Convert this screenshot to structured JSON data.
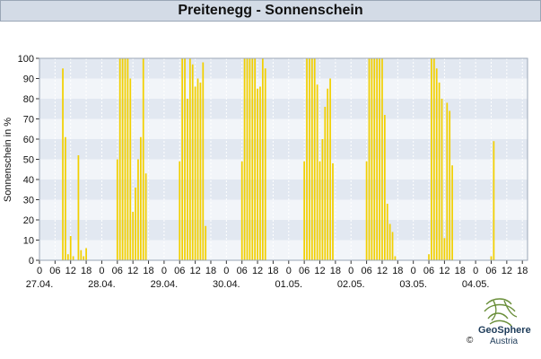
{
  "title": "Preitenegg - Sonnenschein",
  "footer": {
    "brand": "GeoSphere",
    "brand_sub": "Austria",
    "copyright": "©"
  },
  "colors": {
    "bar": "#f2d000",
    "band_a": "#f2f5f9",
    "band_b": "#e2e8f1",
    "grid": "#9aa6b6"
  },
  "chart_data": {
    "type": "bar",
    "title": "Preitenegg - Sonnenschein",
    "xlabel": "",
    "ylabel": "Sonnenschein in %",
    "ylim": [
      0,
      100
    ],
    "yticks": [
      0,
      10,
      20,
      30,
      40,
      50,
      60,
      70,
      80,
      90,
      100
    ],
    "grid": true,
    "x_unit": "hours since 27.04. 00:00 (one bar per hour)",
    "xlim_hours": [
      0,
      188
    ],
    "hour_ticks": [
      "0",
      "06",
      "12",
      "18"
    ],
    "day_labels": [
      "27.04.",
      "28.04.",
      "29.04.",
      "30.04.",
      "01.05.",
      "02.05.",
      "03.05.",
      "04.05."
    ],
    "series": [
      {
        "values": [
          [
            9,
            95
          ],
          [
            10,
            61
          ],
          [
            11,
            3
          ],
          [
            12,
            12
          ],
          [
            13,
            2
          ],
          [
            15,
            52
          ],
          [
            16,
            5
          ],
          [
            17,
            2
          ],
          [
            18,
            6
          ],
          [
            30,
            50
          ],
          [
            31,
            100
          ],
          [
            32,
            100
          ],
          [
            33,
            100
          ],
          [
            34,
            100
          ],
          [
            35,
            90
          ],
          [
            36,
            24
          ],
          [
            37,
            36
          ],
          [
            38,
            50
          ],
          [
            39,
            61
          ],
          [
            40,
            100
          ],
          [
            41,
            43
          ],
          [
            54,
            49
          ],
          [
            55,
            100
          ],
          [
            56,
            100
          ],
          [
            57,
            80
          ],
          [
            58,
            100
          ],
          [
            59,
            97
          ],
          [
            60,
            86
          ],
          [
            61,
            90
          ],
          [
            62,
            88
          ],
          [
            63,
            98
          ],
          [
            64,
            17
          ],
          [
            78,
            49
          ],
          [
            79,
            100
          ],
          [
            80,
            100
          ],
          [
            81,
            100
          ],
          [
            82,
            100
          ],
          [
            83,
            100
          ],
          [
            84,
            85
          ],
          [
            85,
            86
          ],
          [
            86,
            100
          ],
          [
            87,
            95
          ],
          [
            102,
            49
          ],
          [
            103,
            100
          ],
          [
            104,
            100
          ],
          [
            105,
            100
          ],
          [
            106,
            100
          ],
          [
            107,
            87
          ],
          [
            108,
            49
          ],
          [
            109,
            60
          ],
          [
            110,
            76
          ],
          [
            111,
            85
          ],
          [
            112,
            90
          ],
          [
            113,
            48
          ],
          [
            126,
            49
          ],
          [
            127,
            100
          ],
          [
            128,
            100
          ],
          [
            129,
            100
          ],
          [
            130,
            100
          ],
          [
            131,
            100
          ],
          [
            132,
            100
          ],
          [
            133,
            72
          ],
          [
            134,
            28
          ],
          [
            135,
            18
          ],
          [
            136,
            14
          ],
          [
            137,
            2
          ],
          [
            150,
            3
          ],
          [
            151,
            100
          ],
          [
            152,
            100
          ],
          [
            153,
            95
          ],
          [
            154,
            88
          ],
          [
            155,
            80
          ],
          [
            156,
            11
          ],
          [
            157,
            78
          ],
          [
            158,
            74
          ],
          [
            159,
            47
          ],
          [
            174,
            2
          ],
          [
            175,
            59
          ]
        ]
      }
    ]
  }
}
